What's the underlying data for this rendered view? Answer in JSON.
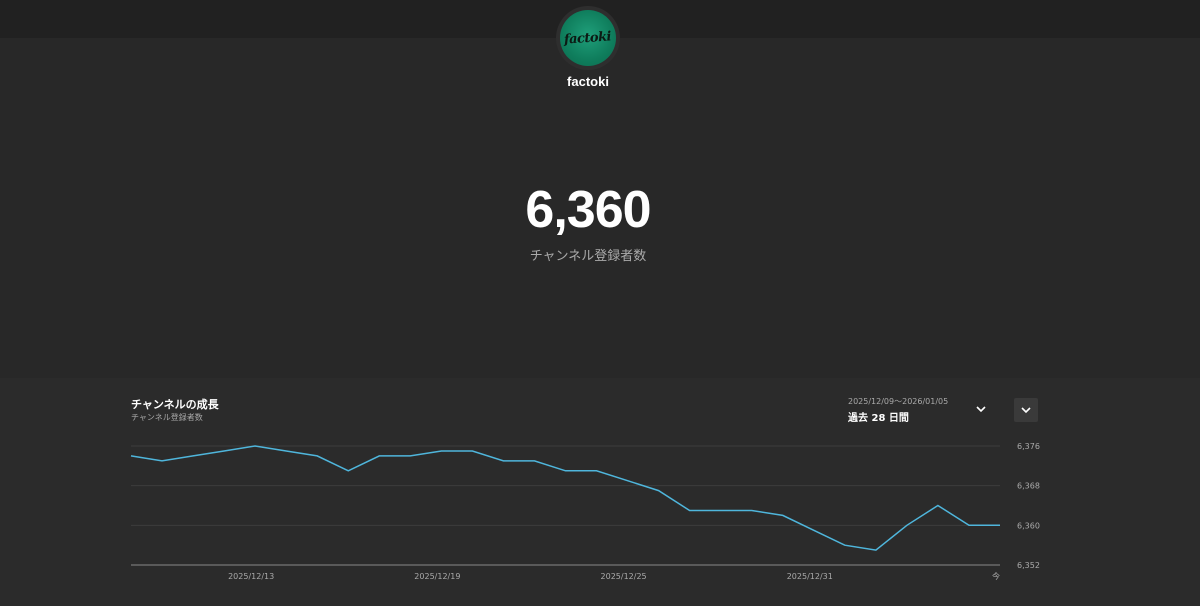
{
  "channel": {
    "name": "factoki",
    "avatar_text": "factoki",
    "subscriber_count": "6,360",
    "subscriber_label": "チャンネル登録者数"
  },
  "growth_panel": {
    "title": "チャンネルの成長",
    "subtitle": "チャンネル登録者数",
    "date_range": "2025/12/09〜2026/01/05",
    "period_label": "過去 28 日間",
    "range_dropdown_icon": "chevron-down-icon",
    "collapse_icon": "chevron-down-icon"
  },
  "colors": {
    "background": "#282828",
    "topbar": "#212121",
    "line": "#4fb6dc",
    "grid": "#3d3d3d",
    "axis": "#8a8a8a"
  },
  "chart_data": {
    "type": "line",
    "title": "チャンネルの成長",
    "ylabel": "",
    "xlabel": "",
    "ylim": [
      6352,
      6376
    ],
    "yticks": [
      "6,376",
      "6,368",
      "6,360",
      "6,352"
    ],
    "ytick_values": [
      6376,
      6368,
      6360,
      6352
    ],
    "xticks": [
      {
        "label": "2025/12/13",
        "index": 4
      },
      {
        "label": "2025/12/19",
        "index": 10
      },
      {
        "label": "2025/12/25",
        "index": 16
      },
      {
        "label": "2025/12/31",
        "index": 22
      },
      {
        "label": "今",
        "index": 28
      }
    ],
    "grid": true,
    "series": [
      {
        "values": [
          6374,
          6373,
          6374,
          6375,
          6376,
          6375,
          6374,
          6371,
          6374,
          6374,
          6375,
          6375,
          6373,
          6373,
          6371,
          6371,
          6369,
          6367,
          6363,
          6363,
          6363,
          6362,
          6359,
          6356,
          6355,
          6360,
          6364,
          6360,
          6360
        ]
      }
    ]
  }
}
